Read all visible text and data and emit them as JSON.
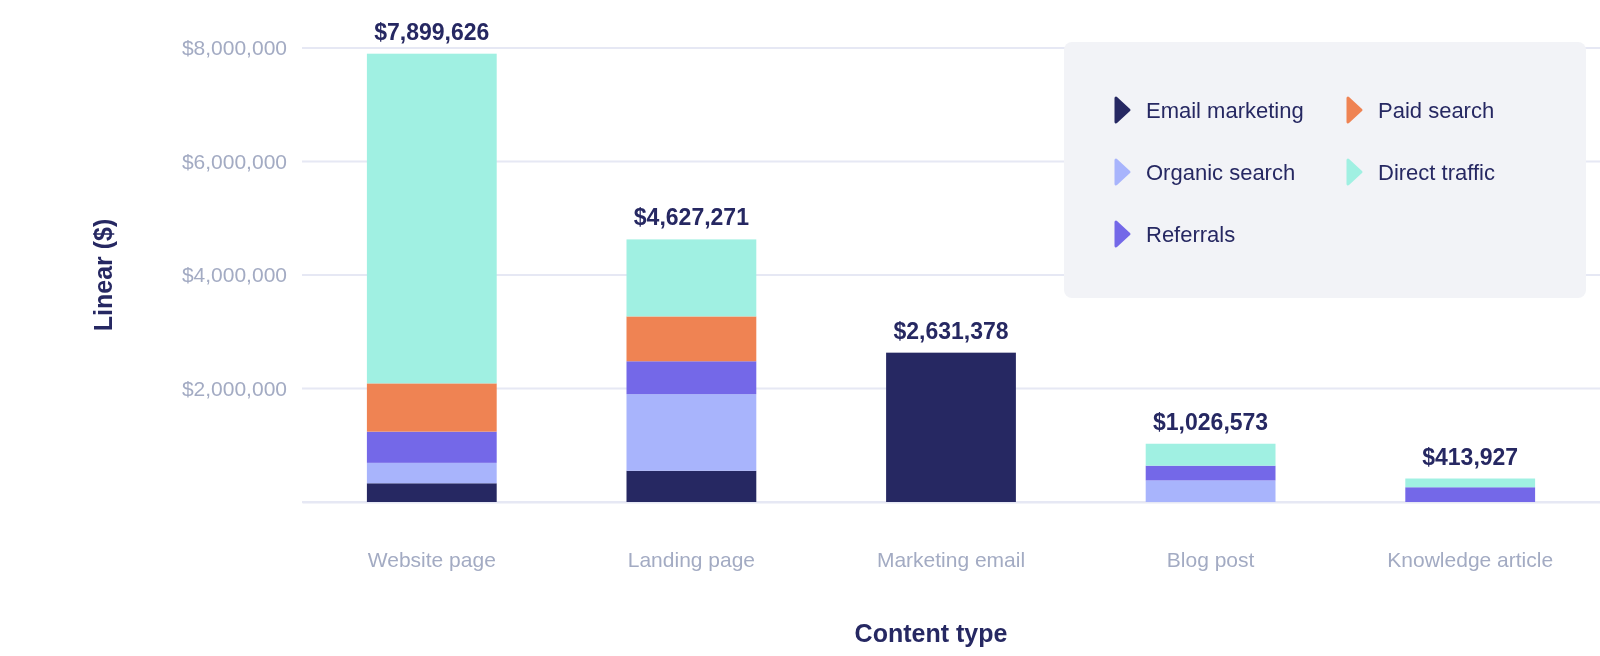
{
  "chart_data": {
    "type": "bar",
    "stacked": true,
    "xlabel": "Content type",
    "ylabel": "Linear ($)",
    "categories": [
      "Website page",
      "Landing page",
      "Marketing email",
      "Blog post",
      "Knowledge article"
    ],
    "series": [
      {
        "name": "Email marketing",
        "color": "#262862",
        "values": [
          330000,
          550000,
          2631378,
          0,
          0
        ]
      },
      {
        "name": "Organic search",
        "color": "#a8b4fc",
        "values": [
          360000,
          1350000,
          0,
          380000,
          0
        ]
      },
      {
        "name": "Referrals",
        "color": "#7468e8",
        "values": [
          550000,
          580000,
          0,
          260000,
          260000
        ]
      },
      {
        "name": "Paid search",
        "color": "#ef8353",
        "values": [
          850000,
          790000,
          0,
          0,
          0
        ]
      },
      {
        "name": "Direct traffic",
        "color": "#a0f0e2",
        "values": [
          5809626,
          1357271,
          0,
          386573,
          153927
        ]
      }
    ],
    "totals": [
      "$7,899,626",
      "$4,627,271",
      "$2,631,378",
      "$1,026,573",
      "$413,927"
    ],
    "ylim": [
      0,
      8000000
    ],
    "yticks": [
      {
        "value": 0,
        "label": null
      },
      {
        "value": 2000000,
        "label": "$2,000,000"
      },
      {
        "value": 4000000,
        "label": "$4,000,000"
      },
      {
        "value": 6000000,
        "label": "$6,000,000"
      },
      {
        "value": 8000000,
        "label": "$8,000,000"
      }
    ],
    "grid": "y",
    "legend": "top right"
  }
}
